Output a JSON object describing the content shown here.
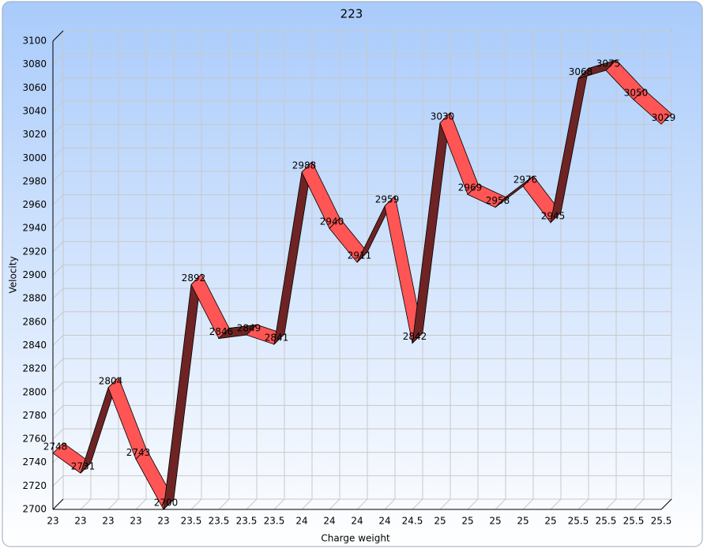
{
  "chart_data": {
    "type": "line",
    "title": "223",
    "x_label": "Charge weight",
    "y_label": "Velocity",
    "categories": [
      "23",
      "23",
      "23",
      "23",
      "23",
      "23.5",
      "23.5",
      "23.5",
      "23.5",
      "24",
      "24",
      "24",
      "24",
      "24.5",
      "25",
      "25",
      "25",
      "25",
      "25",
      "25.5",
      "25.5",
      "25.5",
      "25.5"
    ],
    "series": [
      {
        "name": "Velocity",
        "color": "#ff5555",
        "values": [
          2748,
          2731,
          2804,
          2743,
          2700,
          2892,
          2846,
          2849,
          2841,
          2988,
          2940,
          2911,
          2959,
          2842,
          3030,
          2969,
          2958,
          2976,
          2945,
          3068,
          3075,
          3050,
          3029
        ]
      }
    ],
    "ylim": [
      2700,
      3100
    ],
    "yticks": [
      2700,
      2720,
      2740,
      2760,
      2780,
      2800,
      2820,
      2840,
      2860,
      2880,
      2900,
      2920,
      2940,
      2960,
      2980,
      3000,
      3020,
      3040,
      3060,
      3080,
      3100
    ],
    "grid": true
  }
}
